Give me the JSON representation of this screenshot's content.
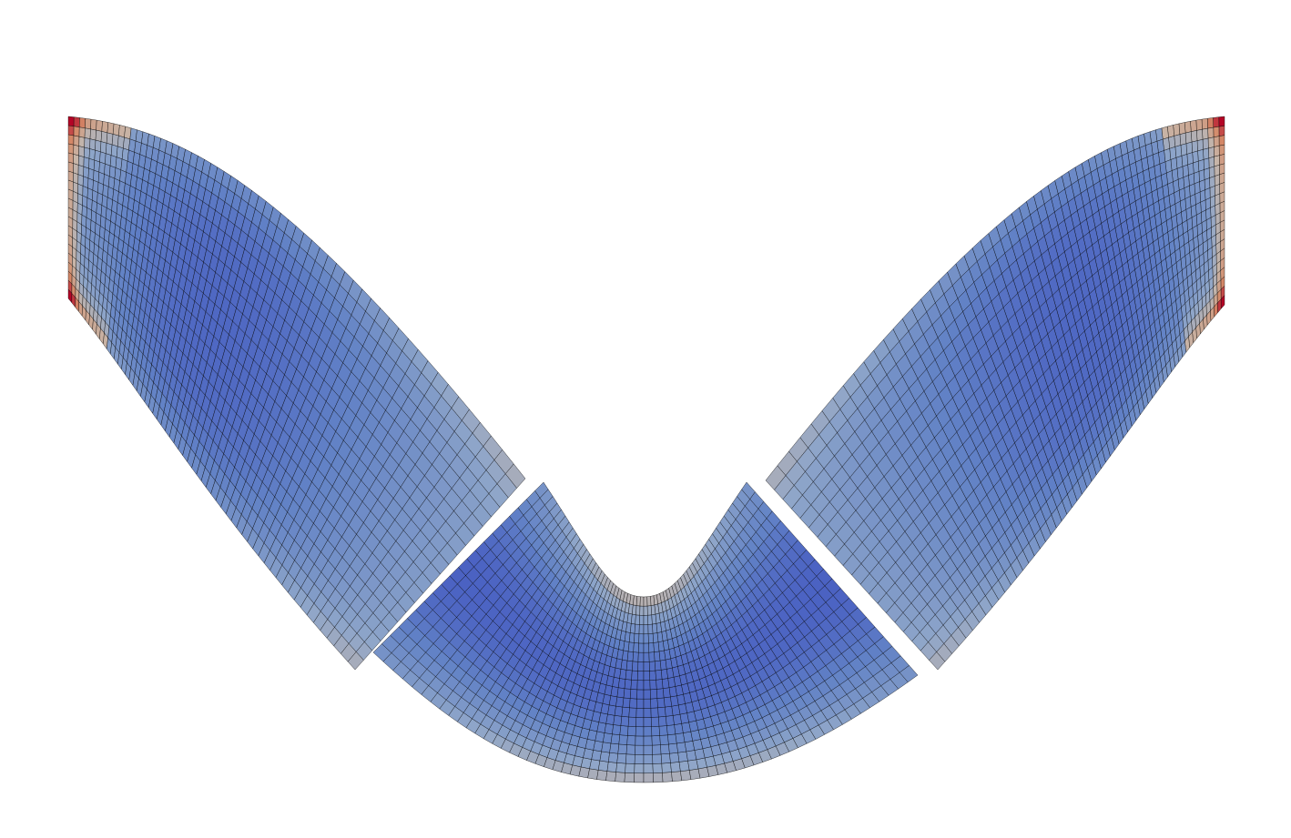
{
  "figure": {
    "type": "fem-mesh-contour",
    "background_color": "#ffffff",
    "mesh_line_color": "#000000",
    "colormap": "cool-to-warm",
    "colormap_stops": [
      "#3b4cc0",
      "#6282c6",
      "#8fa6c9",
      "#c7b5a8",
      "#d58a68",
      "#b40426"
    ],
    "pieces": [
      {
        "name": "left-arm",
        "radial_divisions": 20,
        "angular_divisions": 60
      },
      {
        "name": "center-bend",
        "radial_divisions": 20,
        "angular_divisions": 60
      },
      {
        "name": "right-arm",
        "radial_divisions": 20,
        "angular_divisions": 60
      }
    ]
  }
}
